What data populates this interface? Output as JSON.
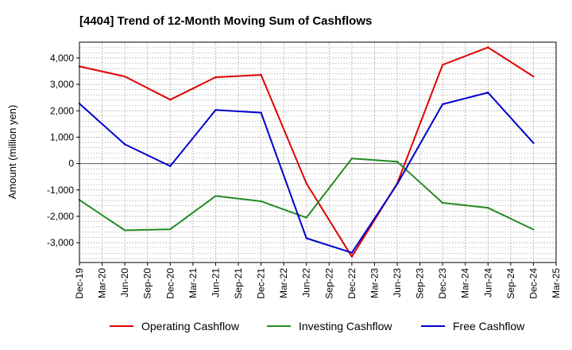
{
  "chart_data": {
    "type": "line",
    "title": "[4404]  Trend of 12-Month Moving Sum of Cashflows",
    "xlabel": "",
    "ylabel": "Amount (million yen)",
    "categories": [
      "Dec-19",
      "Mar-20",
      "Jun-20",
      "Sep-20",
      "Dec-20",
      "Mar-21",
      "Jun-21",
      "Sep-21",
      "Dec-21",
      "Mar-22",
      "Jun-22",
      "Sep-22",
      "Dec-22",
      "Mar-23",
      "Jun-23",
      "Sep-23",
      "Dec-23",
      "Mar-24",
      "Jun-24",
      "Sep-24",
      "Dec-24",
      "Mar-25"
    ],
    "yticks": [
      -3000,
      -2000,
      -1000,
      0,
      1000,
      2000,
      3000,
      4000
    ],
    "ytick_labels": [
      "-3,000",
      "-2,000",
      "-1,000",
      "0",
      "1,000",
      "2,000",
      "3,000",
      "4,000"
    ],
    "ylim": [
      -3750,
      4600
    ],
    "grid": true,
    "legend_position": "bottom",
    "series": [
      {
        "name": "Operating Cashflow",
        "color": "#e00000",
        "values": [
          3680,
          null,
          3300,
          null,
          2420,
          null,
          3270,
          null,
          3360,
          null,
          -750,
          null,
          -3530,
          null,
          -750,
          null,
          3740,
          null,
          4400,
          null,
          3300,
          null
        ]
      },
      {
        "name": "Investing Cashflow",
        "color": "#228b22",
        "values": [
          -1380,
          null,
          -2530,
          null,
          -2490,
          null,
          -1230,
          null,
          -1430,
          null,
          -2050,
          null,
          190,
          null,
          70,
          null,
          -1490,
          null,
          -1680,
          null,
          -2500,
          null
        ]
      },
      {
        "name": "Free Cashflow",
        "color": "#0000cc",
        "values": [
          2270,
          null,
          730,
          null,
          -100,
          null,
          2030,
          null,
          1930,
          null,
          -2830,
          null,
          -3380,
          null,
          -780,
          null,
          2250,
          null,
          2690,
          null,
          780,
          null
        ]
      }
    ]
  }
}
